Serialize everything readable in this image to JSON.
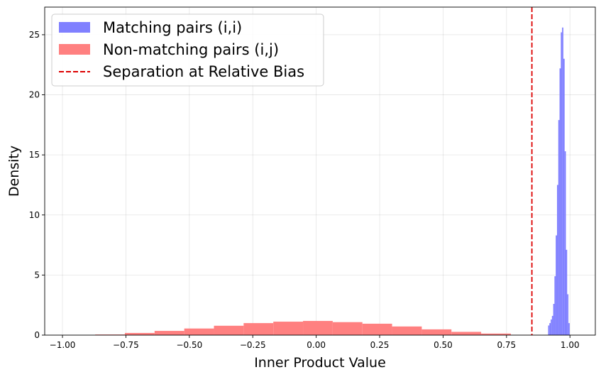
{
  "chart_data": {
    "type": "bar",
    "title": "",
    "xlabel": "Inner Product Value",
    "ylabel": "Density",
    "xlim": [
      -1.07,
      1.1
    ],
    "ylim": [
      0,
      27.3
    ],
    "grid": true,
    "legend_position": "top-left",
    "x_ticks": [
      {
        "value": -1.0,
        "label": "−1.00"
      },
      {
        "value": -0.75,
        "label": "−0.75"
      },
      {
        "value": -0.5,
        "label": "−0.50"
      },
      {
        "value": -0.25,
        "label": "−0.25"
      },
      {
        "value": 0.0,
        "label": "0.00"
      },
      {
        "value": 0.25,
        "label": "0.25"
      },
      {
        "value": 0.5,
        "label": "0.50"
      },
      {
        "value": 0.75,
        "label": "0.75"
      },
      {
        "value": 1.0,
        "label": "1.00"
      }
    ],
    "y_ticks": [
      {
        "value": 0,
        "label": "0"
      },
      {
        "value": 5,
        "label": "5"
      },
      {
        "value": 10,
        "label": "10"
      },
      {
        "value": 15,
        "label": "15"
      },
      {
        "value": 20,
        "label": "20"
      },
      {
        "value": 25,
        "label": "25"
      }
    ],
    "series": [
      {
        "name": "Matching pairs (i,i)",
        "color": "#8080ff",
        "bins": [
          {
            "x0": 0.914,
            "x1": 0.919,
            "y": 0.8
          },
          {
            "x0": 0.919,
            "x1": 0.924,
            "y": 1.0
          },
          {
            "x0": 0.924,
            "x1": 0.929,
            "y": 1.3
          },
          {
            "x0": 0.929,
            "x1": 0.934,
            "y": 1.6
          },
          {
            "x0": 0.934,
            "x1": 0.939,
            "y": 2.6
          },
          {
            "x0": 0.939,
            "x1": 0.944,
            "y": 4.9
          },
          {
            "x0": 0.944,
            "x1": 0.949,
            "y": 8.3
          },
          {
            "x0": 0.949,
            "x1": 0.954,
            "y": 12.5
          },
          {
            "x0": 0.954,
            "x1": 0.959,
            "y": 17.9
          },
          {
            "x0": 0.959,
            "x1": 0.964,
            "y": 22.2
          },
          {
            "x0": 0.964,
            "x1": 0.969,
            "y": 25.2
          },
          {
            "x0": 0.969,
            "x1": 0.974,
            "y": 25.6
          },
          {
            "x0": 0.974,
            "x1": 0.979,
            "y": 23.0
          },
          {
            "x0": 0.979,
            "x1": 0.984,
            "y": 15.3
          },
          {
            "x0": 0.984,
            "x1": 0.989,
            "y": 7.1
          },
          {
            "x0": 0.989,
            "x1": 0.994,
            "y": 3.4
          },
          {
            "x0": 0.994,
            "x1": 0.999,
            "y": 1.0
          }
        ]
      },
      {
        "name": "Non-matching pairs (i,j)",
        "color": "#ff8080",
        "bins": [
          {
            "x0": -0.871,
            "x1": -0.754,
            "y": 0.05
          },
          {
            "x0": -0.754,
            "x1": -0.637,
            "y": 0.18
          },
          {
            "x0": -0.637,
            "x1": -0.52,
            "y": 0.35
          },
          {
            "x0": -0.52,
            "x1": -0.403,
            "y": 0.55
          },
          {
            "x0": -0.403,
            "x1": -0.286,
            "y": 0.78
          },
          {
            "x0": -0.286,
            "x1": -0.169,
            "y": 1.0
          },
          {
            "x0": -0.169,
            "x1": -0.052,
            "y": 1.12
          },
          {
            "x0": -0.052,
            "x1": 0.065,
            "y": 1.18
          },
          {
            "x0": 0.065,
            "x1": 0.182,
            "y": 1.08
          },
          {
            "x0": 0.182,
            "x1": 0.299,
            "y": 0.95
          },
          {
            "x0": 0.299,
            "x1": 0.416,
            "y": 0.72
          },
          {
            "x0": 0.416,
            "x1": 0.533,
            "y": 0.48
          },
          {
            "x0": 0.533,
            "x1": 0.65,
            "y": 0.27
          },
          {
            "x0": 0.65,
            "x1": 0.767,
            "y": 0.13
          },
          {
            "x0": 0.767,
            "x1": 0.884,
            "y": 0.02
          }
        ]
      }
    ],
    "reference_line": {
      "name": "Separation at Relative Bias",
      "x": 0.85,
      "color": "#dd0000",
      "style": "dashed"
    }
  }
}
